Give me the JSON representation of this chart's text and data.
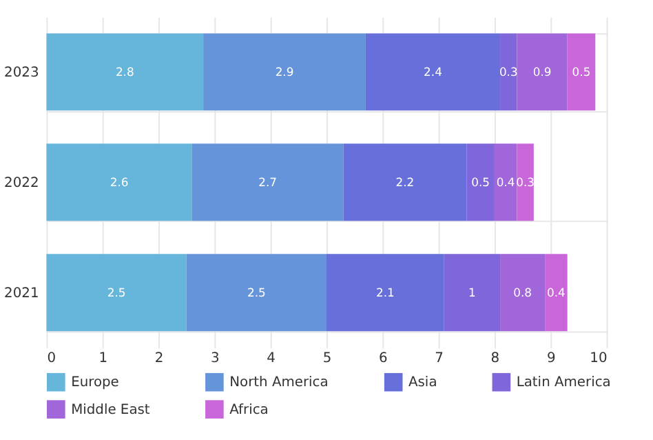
{
  "chart_data": {
    "type": "bar",
    "orientation": "horizontal",
    "stacked": true,
    "categories": [
      "2023",
      "2022",
      "2021"
    ],
    "series": [
      {
        "name": "Europe",
        "color": "#66b5da",
        "values": [
          2.8,
          2.6,
          2.5
        ]
      },
      {
        "name": "North America",
        "color": "#6694da",
        "values": [
          2.9,
          2.7,
          2.5
        ]
      },
      {
        "name": "Asia",
        "color": "#666fda",
        "values": [
          2.4,
          2.2,
          2.1
        ]
      },
      {
        "name": "Latin America",
        "color": "#7f66da",
        "values": [
          0.3,
          0.5,
          1
        ]
      },
      {
        "name": "Middle East",
        "color": "#a066da",
        "values": [
          0.9,
          0.4,
          0.8
        ]
      },
      {
        "name": "Africa",
        "color": "#c866da",
        "values": [
          0.5,
          0.3,
          0.4
        ]
      }
    ],
    "xlim": [
      0,
      10
    ],
    "xticks": [
      0,
      1,
      2,
      3,
      4,
      5,
      6,
      7,
      8,
      9,
      10
    ],
    "grid": true,
    "legend": "bottom",
    "data_labels": true
  }
}
